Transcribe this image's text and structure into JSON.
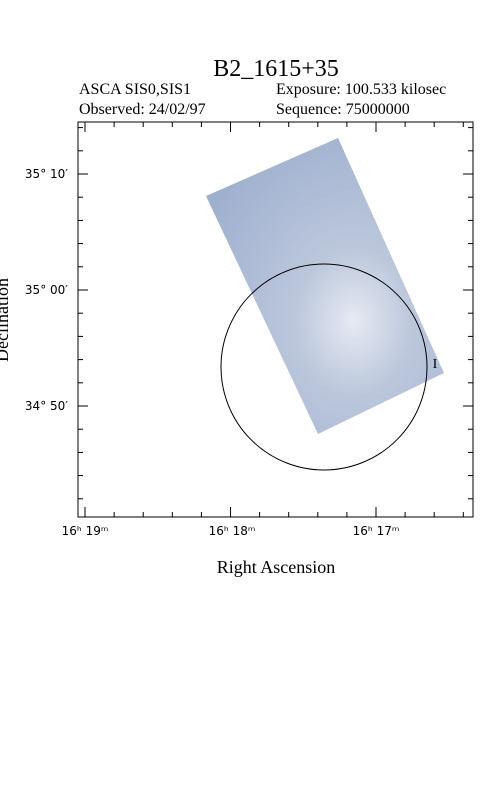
{
  "header": {
    "title": "B2_1615+35",
    "instrument": "ASCA SIS0,SIS1",
    "exposure": "Exposure: 100.533 kilosec",
    "observed": "Observed: 24/02/97",
    "sequence": "Sequence: 75000000"
  },
  "axes": {
    "x_label": "Right Ascension",
    "y_label": "Declination",
    "y_ticks": [
      "35° 10′",
      "35° 00′",
      "34° 50′"
    ],
    "x_ticks": [
      "16ʰ 19ᵐ",
      "16ʰ 18ᵐ",
      "16ʰ 17ᵐ"
    ]
  },
  "marker": "I"
}
